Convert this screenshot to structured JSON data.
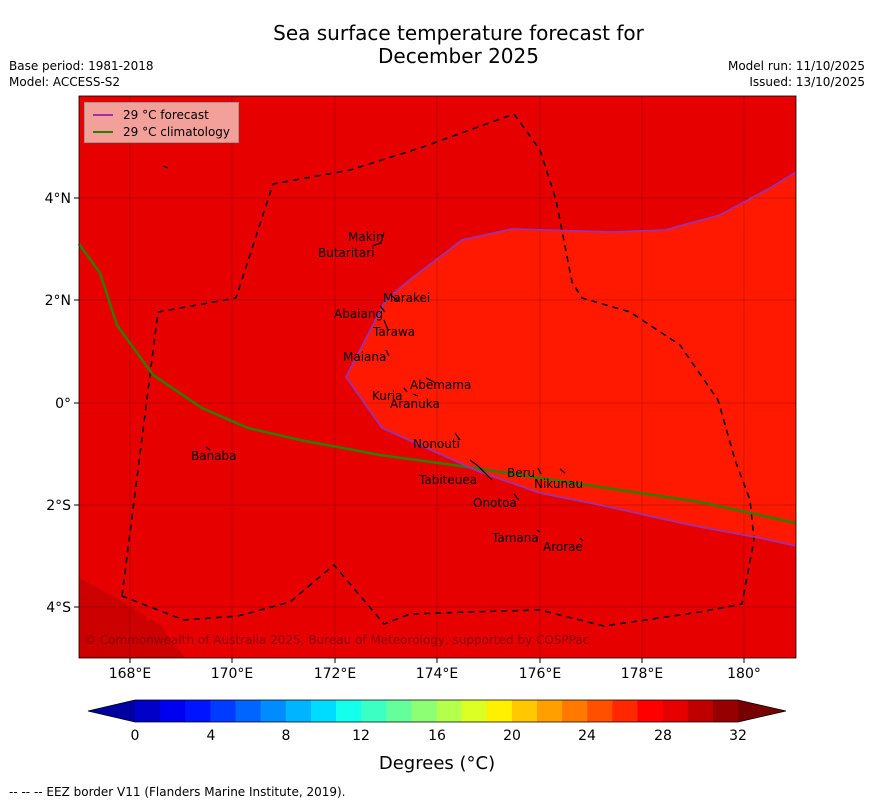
{
  "header": {
    "title_line1": "Sea surface temperature forecast for",
    "title_line2": "December 2025",
    "base_period": "Base period: 1981-2018",
    "model": "Model: ACCESS-S2",
    "model_run": "Model run: 11/10/2025",
    "issued": "Issued: 13/10/2025"
  },
  "legend": {
    "forecast_label": "29 °C  forecast",
    "climatology_label": "29 °C  climatology",
    "forecast_color": "#9b30b0",
    "climatology_color": "#2e7d00"
  },
  "colors": {
    "background_sst": "#e60000",
    "warm_region_sst": "#ff1900",
    "southwest_corner": "#cc0000",
    "eez_line": "#000000"
  },
  "axes": {
    "x_ticks": [
      "168°E",
      "170°E",
      "172°E",
      "174°E",
      "176°E",
      "178°E",
      "180°"
    ],
    "y_ticks": [
      "4°N",
      "2°N",
      "0°",
      "2°S",
      "4°S"
    ]
  },
  "places": [
    "Makin",
    "Butaritari",
    "Marakei",
    "Abaiang",
    "Tarawa",
    "Maiana",
    "Abemama",
    "Kuria",
    "Aranuka",
    "Nonouti",
    "Banaba",
    "Beru",
    "Tabiteuea",
    "Nikunau",
    "Onotoa",
    "Tamana",
    "Arorae"
  ],
  "copyright": "© Commonwealth of Australia 2025, Bureau of Meteorology, supported by COSPPac",
  "colorbar": {
    "title": "Degrees (°C)",
    "tick_labels": [
      "0",
      "4",
      "8",
      "12",
      "16",
      "20",
      "24",
      "28",
      "32"
    ],
    "colors": [
      "#0000a0",
      "#0000c8",
      "#0000f0",
      "#0014ff",
      "#003cff",
      "#0064ff",
      "#008cff",
      "#00b4ff",
      "#00dcff",
      "#14ffec",
      "#3cffc4",
      "#64ff9c",
      "#8cff74",
      "#b4ff4c",
      "#dcff24",
      "#fff000",
      "#ffc800",
      "#ffa000",
      "#ff7800",
      "#ff5000",
      "#ff2800",
      "#ff0000",
      "#e60000",
      "#c00000",
      "#960000",
      "#780000"
    ]
  },
  "footer": {
    "eez_note": "--  --  -- EEZ border V11 (Flanders Marine Institute, 2019)."
  }
}
